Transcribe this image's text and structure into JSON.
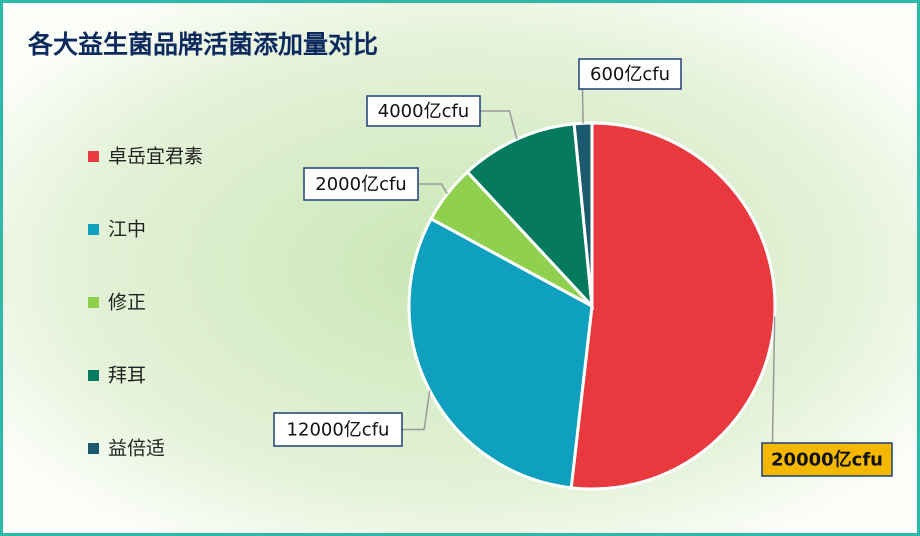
{
  "chart_data": {
    "type": "pie",
    "title": "各大益生菌品牌活菌添加量对比",
    "categories": [
      "卓岳宜君素",
      "江中",
      "修正",
      "拜耳",
      "益倍适"
    ],
    "values": [
      20000,
      12000,
      2000,
      4000,
      600
    ],
    "value_labels": [
      "20000亿cfu",
      "12000亿cfu",
      "2000亿cfu",
      "4000亿cfu",
      "600亿cfu"
    ],
    "colors": [
      "#e8393f",
      "#0f9fbf",
      "#8fd14f",
      "#067a5e",
      "#1b5a6e"
    ],
    "legend": "left"
  }
}
